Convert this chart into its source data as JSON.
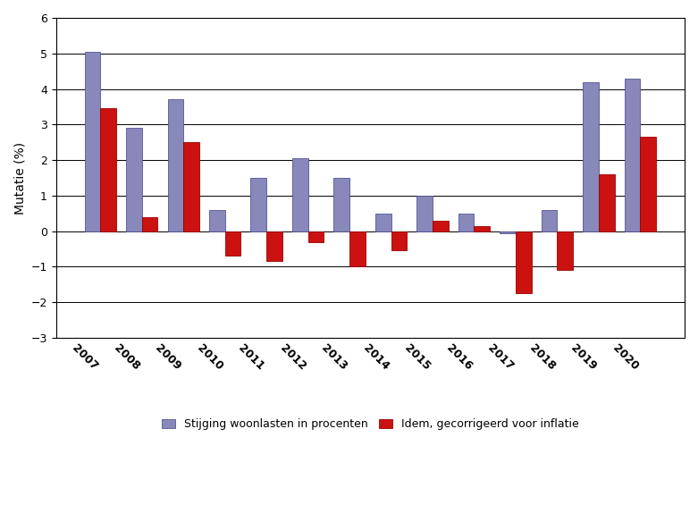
{
  "years": [
    "2007",
    "2008",
    "2009",
    "2010",
    "2011",
    "2012",
    "2013",
    "2014",
    "2015",
    "2016",
    "2017",
    "2018",
    "2019",
    "2020"
  ],
  "series1": [
    5.05,
    2.9,
    3.7,
    0.6,
    1.5,
    2.05,
    1.5,
    0.5,
    1.0,
    0.5,
    -0.05,
    0.6,
    4.2,
    4.3
  ],
  "series2": [
    3.45,
    0.4,
    2.5,
    -0.7,
    -0.85,
    -0.3,
    -1.0,
    -0.55,
    0.3,
    0.15,
    -1.75,
    -1.1,
    1.6,
    2.65
  ],
  "color1": "#8888BB",
  "color2": "#CC1111",
  "bar_edge_color": "#555599",
  "bar2_edge_color": "#990000",
  "ylabel": "Mutatie (%)",
  "ylim": [
    -3,
    6
  ],
  "yticks": [
    -3,
    -2,
    -1,
    0,
    1,
    2,
    3,
    4,
    5,
    6
  ],
  "legend1": "Stijging woonlasten in procenten",
  "legend2": "Idem, gecorrigeerd voor inflatie",
  "bar_width": 0.38,
  "figsize": [
    7.81,
    5.74
  ],
  "dpi": 100
}
